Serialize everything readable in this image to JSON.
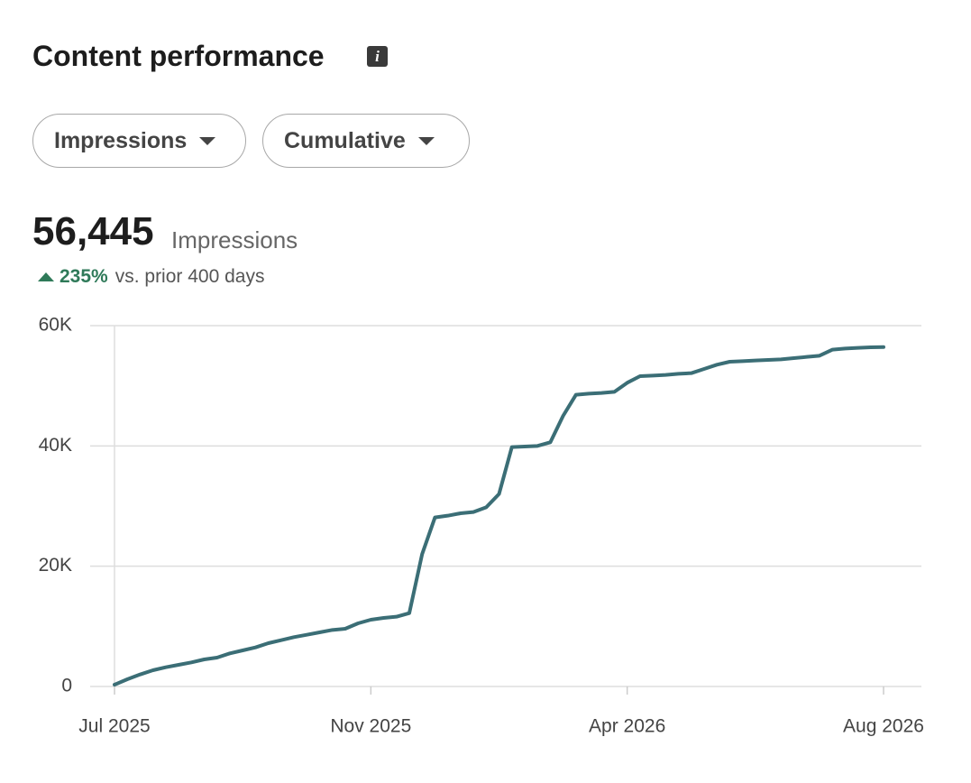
{
  "header": {
    "title": "Content performance"
  },
  "filters": [
    "Impressions",
    "Cumulative"
  ],
  "summary": {
    "value": "56,445",
    "label": "Impressions",
    "change": "235%",
    "comparison": "vs. prior 400 days"
  },
  "chart_data": {
    "type": "line",
    "categories": [
      "Jul 2025",
      null,
      null,
      null,
      null,
      null,
      null,
      null,
      null,
      null,
      null,
      null,
      null,
      null,
      null,
      null,
      null,
      null,
      null,
      null,
      "Nov 2025",
      null,
      null,
      null,
      null,
      null,
      null,
      null,
      null,
      null,
      null,
      null,
      null,
      null,
      null,
      null,
      null,
      null,
      null,
      null,
      "Apr 2026",
      null,
      null,
      null,
      null,
      null,
      null,
      null,
      null,
      null,
      null,
      null,
      null,
      null,
      null,
      null,
      null,
      null,
      null,
      null,
      "Aug 2026"
    ],
    "series": [
      {
        "name": "Impressions",
        "color": "#3b6e76",
        "values": [
          300,
          1200,
          2000,
          2700,
          3200,
          3600,
          4000,
          4500,
          4800,
          5500,
          6000,
          6500,
          7200,
          7700,
          8200,
          8600,
          9000,
          9400,
          9600,
          10500,
          11100,
          11400,
          11600,
          12200,
          22000,
          28100,
          28400,
          28800,
          29000,
          29800,
          32000,
          39800,
          39900,
          40000,
          40600,
          45000,
          48500,
          48700,
          48800,
          49000,
          50500,
          51600,
          51700,
          51800,
          52000,
          52100,
          52800,
          53500,
          54000,
          54100,
          54200,
          54300,
          54400,
          54600,
          54800,
          55000,
          56000,
          56200,
          56300,
          56400,
          56445
        ]
      }
    ],
    "ylim": [
      0,
      60000
    ],
    "yticks": [
      0,
      {
        "value": 20000,
        "label": "20K"
      },
      {
        "value": 40000,
        "label": "40K"
      },
      {
        "value": 60000,
        "label": "60K"
      }
    ],
    "grid": true
  }
}
